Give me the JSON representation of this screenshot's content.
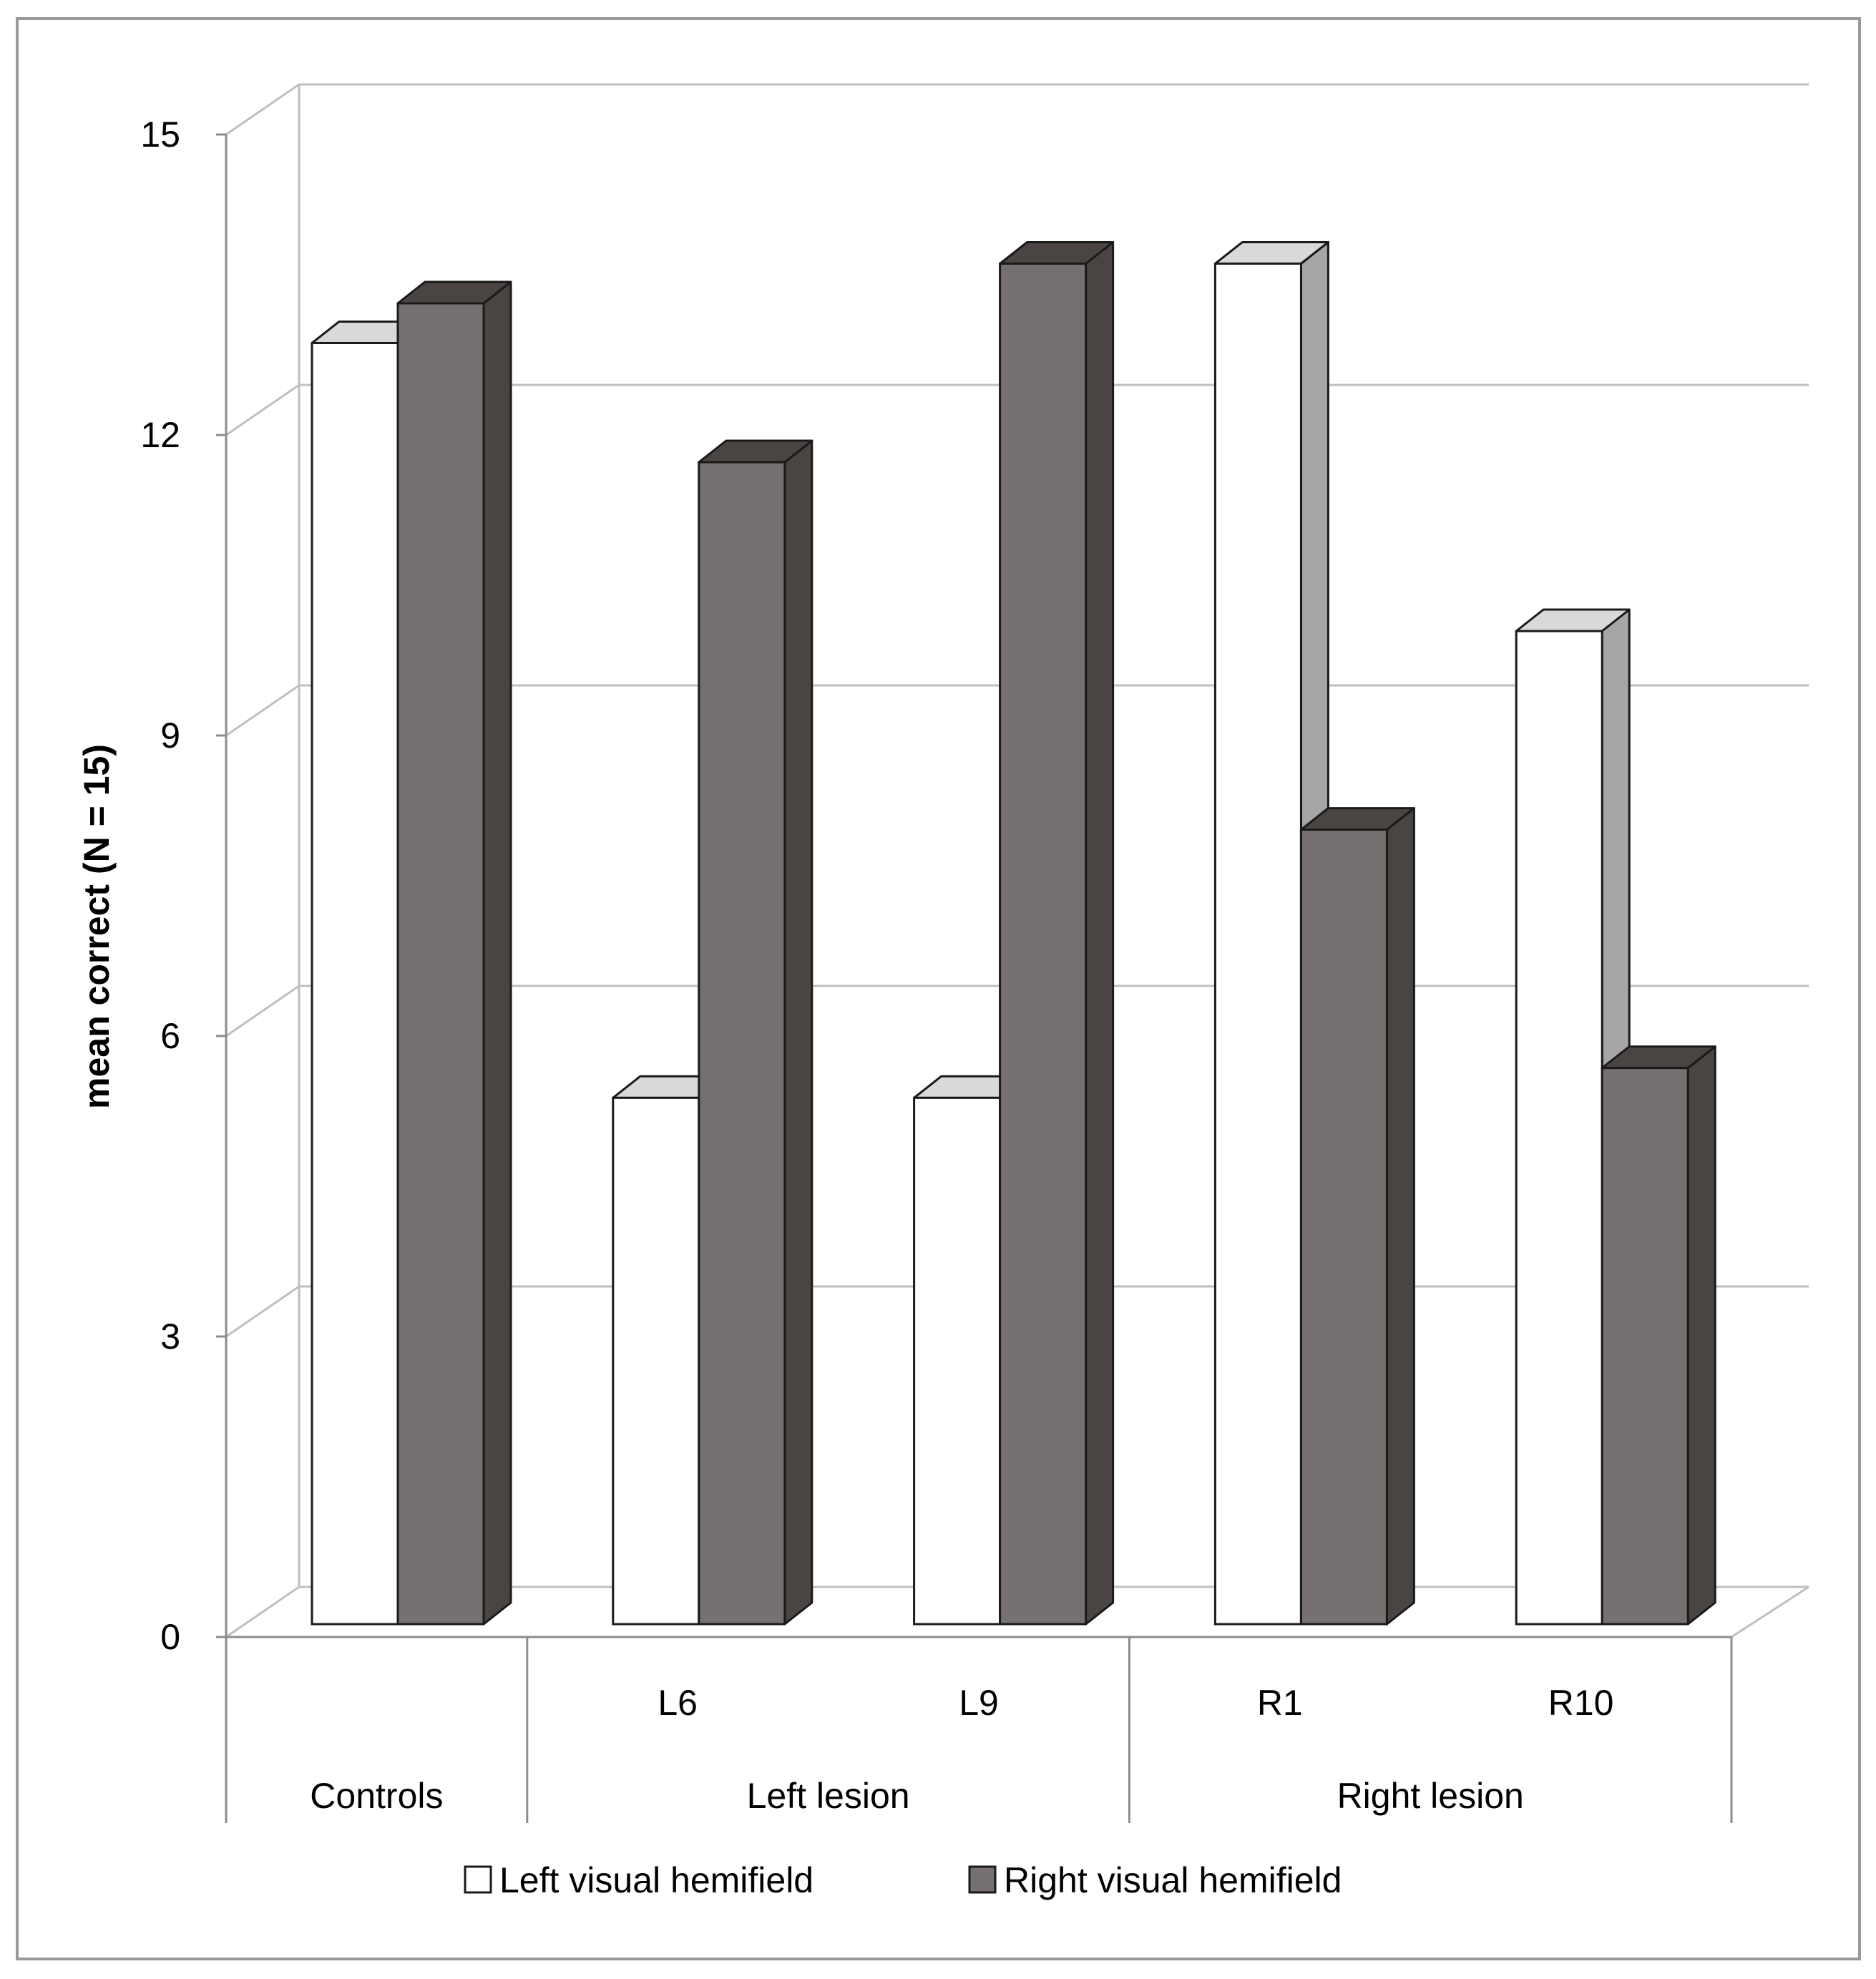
{
  "chart_data": {
    "type": "bar",
    "style": "3d-clustered-column",
    "title": "",
    "ylabel": "mean correct (N = 15)",
    "xlabel": "",
    "ylim": [
      0,
      15
    ],
    "yticks": [
      0,
      3,
      6,
      9,
      12,
      15
    ],
    "grid": true,
    "categories": [
      {
        "label": "",
        "group": "Controls"
      },
      {
        "label": "L6",
        "group": "Left lesion"
      },
      {
        "label": "L9",
        "group": "Left lesion"
      },
      {
        "label": "R1",
        "group": "Right lesion"
      },
      {
        "label": "R10",
        "group": "Right lesion"
      }
    ],
    "groups": [
      "Controls",
      "Left lesion",
      "Right lesion"
    ],
    "series": [
      {
        "name": "Left visual hemifield",
        "color": "#ffffff",
        "values": [
          12.9,
          5.3,
          5.3,
          13.7,
          10.0
        ]
      },
      {
        "name": "Right visual hemifield",
        "color": "#767170",
        "values": [
          13.3,
          11.7,
          13.7,
          8.0,
          5.6
        ]
      }
    ],
    "legend_position": "bottom"
  },
  "colors": {
    "grid": "#bfbfbf",
    "axis": "#8c8c8c",
    "outline": "#1a1a1a",
    "light_top": "#d9d9d9",
    "light_side": "#a6a6a6",
    "dark_top": "#4a4443",
    "dark_side": "#4a4443",
    "border": "#999999"
  }
}
